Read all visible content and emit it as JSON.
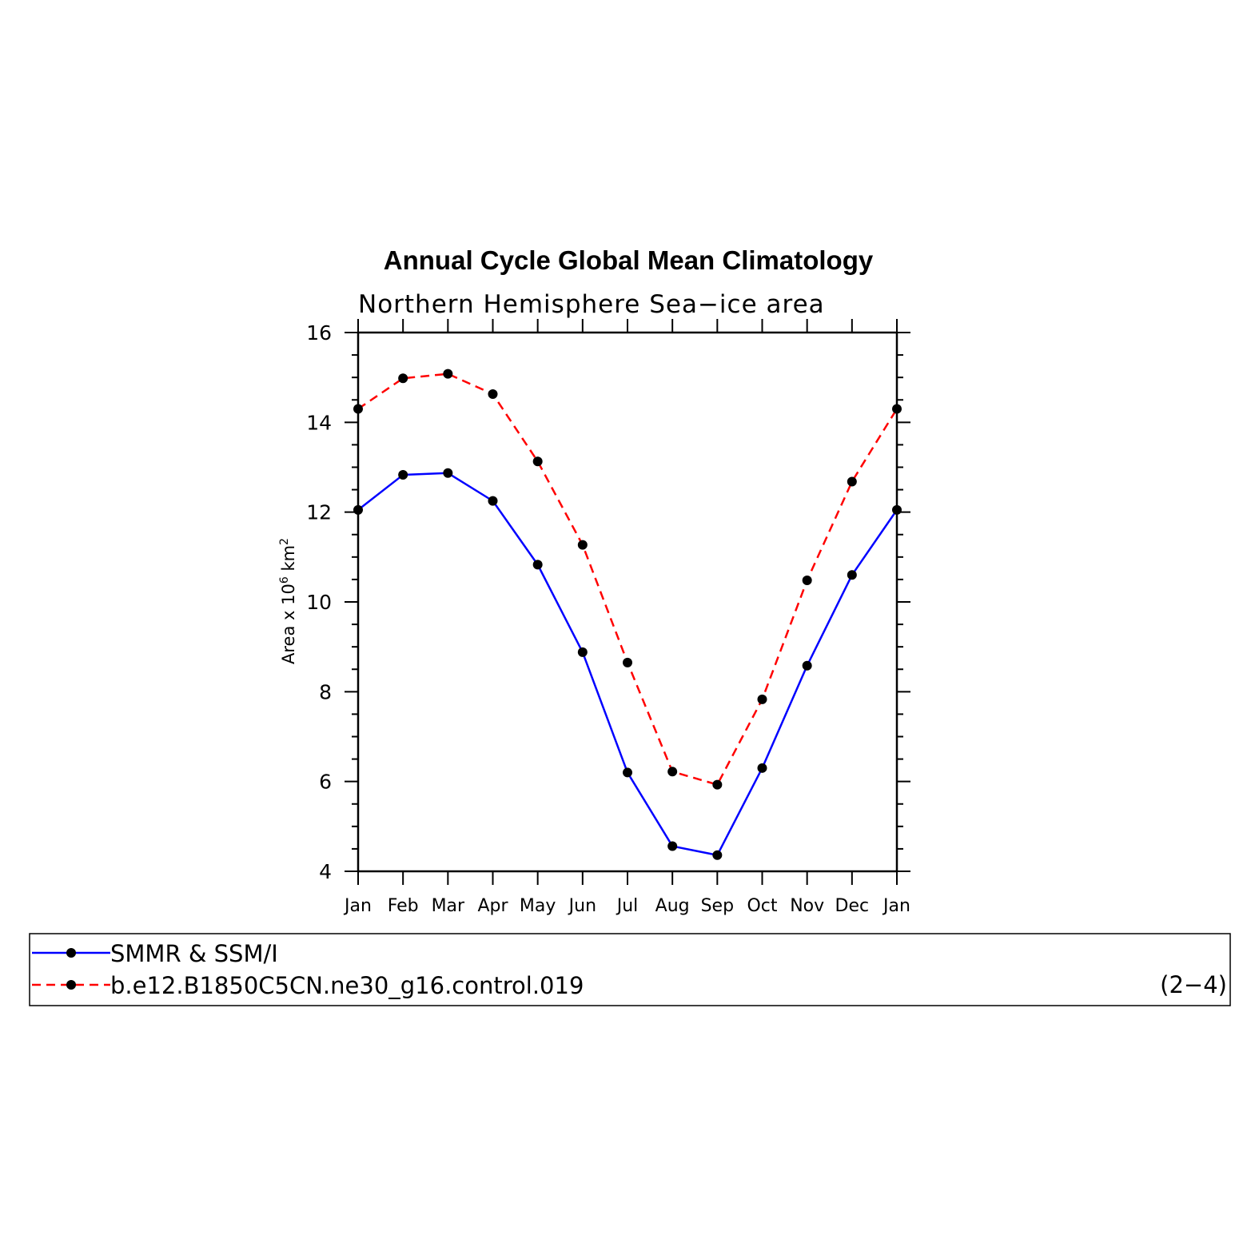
{
  "chart_data": {
    "type": "line",
    "title": "Annual Cycle Global Mean Climatology",
    "subtitle": "Northern Hemisphere Sea−ice area",
    "ylabel": {
      "text": "Area x 10",
      "exp1": "6",
      "unit": " km",
      "exp2": "2"
    },
    "xlabel": "",
    "categories": [
      "Jan",
      "Feb",
      "Mar",
      "Apr",
      "May",
      "Jun",
      "Jul",
      "Aug",
      "Sep",
      "Oct",
      "Nov",
      "Dec",
      "Jan"
    ],
    "ylim": [
      4,
      16
    ],
    "yticks": [
      4,
      6,
      8,
      10,
      12,
      14,
      16
    ],
    "grid": false,
    "series": [
      {
        "name": "SMMR & SSM/I",
        "color": "#0000ff",
        "dash": "solid",
        "values": [
          12.05,
          12.83,
          12.87,
          12.25,
          10.83,
          8.88,
          6.2,
          4.56,
          4.36,
          6.3,
          8.58,
          10.6,
          12.05
        ]
      },
      {
        "name": "b.e12.B1850C5CN.ne30_g16.control.019",
        "color": "#ff0000",
        "dash": "dashed",
        "values": [
          14.3,
          14.98,
          15.08,
          14.63,
          13.13,
          11.27,
          8.65,
          6.22,
          5.93,
          7.83,
          10.48,
          12.68,
          14.3
        ]
      }
    ],
    "legend": {
      "placement": "bottom"
    },
    "panel_label": "(2−4)"
  }
}
